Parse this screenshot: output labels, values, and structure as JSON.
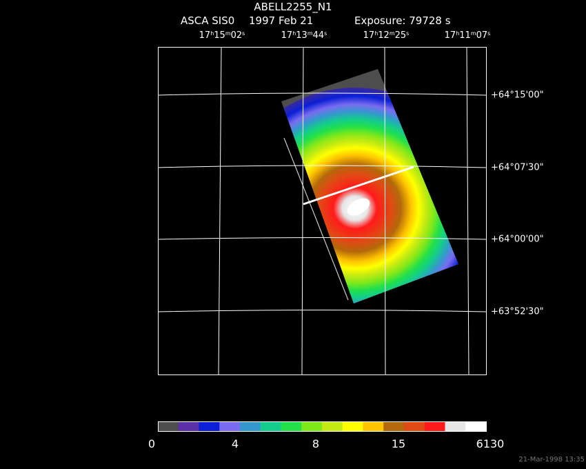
{
  "header": {
    "title": "ABELL2255_N1",
    "instrument": "ASCA SIS0",
    "date": "1997 Feb 21",
    "exposure": "Exposure: 79728 s"
  },
  "axes": {
    "ra_labels": [
      {
        "h": "17",
        "m": "15",
        "s": "02"
      },
      {
        "h": "17",
        "m": "13",
        "s": "44"
      },
      {
        "h": "17",
        "m": "12",
        "s": "25"
      },
      {
        "h": "17",
        "m": "11",
        "s": "07"
      }
    ],
    "dec_labels": [
      "+64°15'00\"",
      "+64°07'30\"",
      "+64°00'00\"",
      "+63°52'30\""
    ]
  },
  "colorbar": {
    "colors": [
      "#4d4d4d",
      "#5a2fa8",
      "#0b1fd6",
      "#7a6cf0",
      "#3399cc",
      "#14cc8c",
      "#22e04a",
      "#7fe81a",
      "#c3ea12",
      "#ffff00",
      "#ffc400",
      "#b3690b",
      "#e04a14",
      "#ff1a1a",
      "#e6e6e6",
      "#ffffff"
    ],
    "labels": [
      "0",
      "4",
      "8",
      "15",
      "6130"
    ]
  },
  "footer": "21-Mar-1998 13:35"
}
